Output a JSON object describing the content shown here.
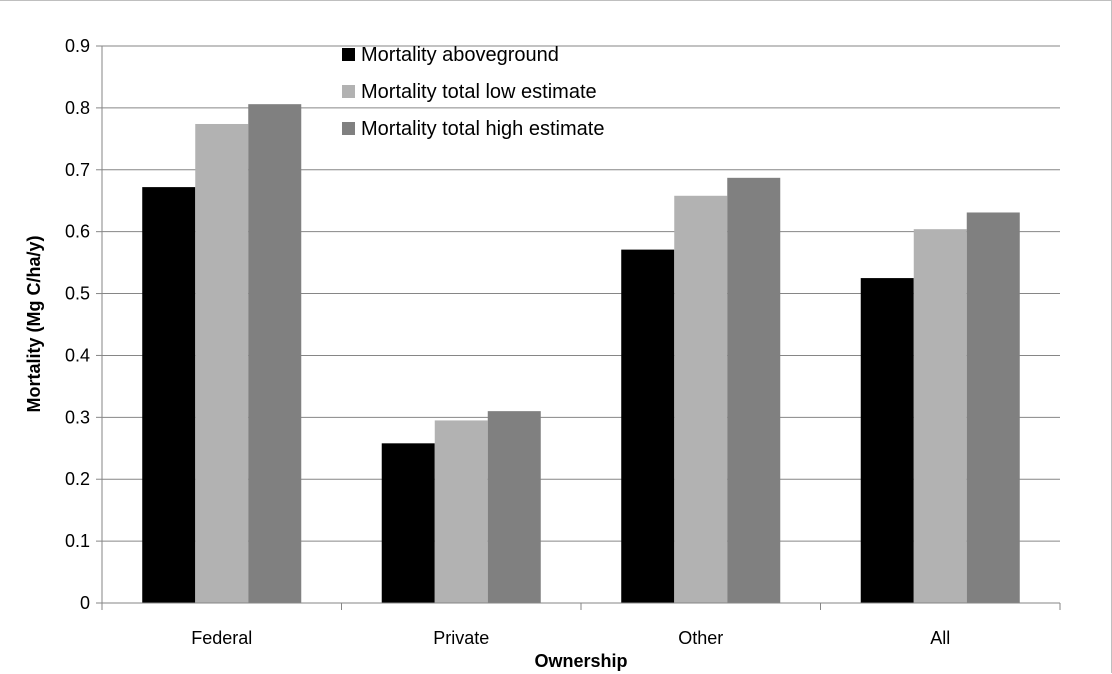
{
  "chart_data": {
    "type": "bar",
    "categories": [
      "Federal",
      "Private",
      "Other",
      "All"
    ],
    "series": [
      {
        "name": "Mortality aboveground",
        "values": [
          0.672,
          0.258,
          0.571,
          0.525
        ],
        "color": "#000000"
      },
      {
        "name": "Mortality total low estimate",
        "values": [
          0.774,
          0.295,
          0.658,
          0.604
        ],
        "color": "#b2b2b2"
      },
      {
        "name": "Mortality total high estimate",
        "values": [
          0.806,
          0.31,
          0.687,
          0.631
        ],
        "color": "#808080"
      }
    ],
    "xlabel": "Ownership",
    "ylabel": "Mortality (Mg C/ha/y)",
    "ylim": [
      0,
      0.9
    ],
    "yticks": [
      "0",
      "0.1",
      "0.2",
      "0.3",
      "0.4",
      "0.5",
      "0.6",
      "0.7",
      "0.8",
      "0.9"
    ],
    "grid": true,
    "legend_position": "top-center inside plot",
    "gridline_color": "#868686"
  }
}
